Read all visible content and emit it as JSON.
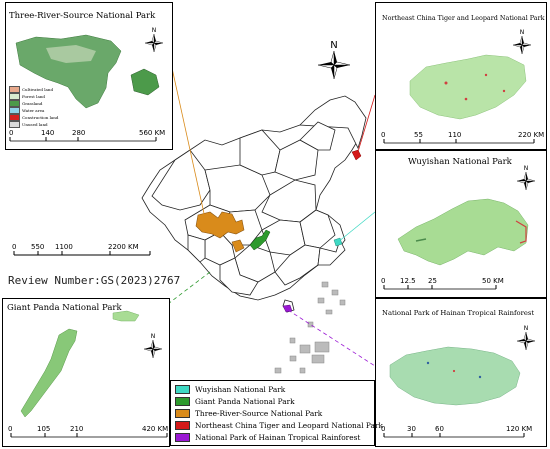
{
  "main_map": {
    "review_number": "Review Number:GS(2023)2767",
    "scale_labels": [
      "0",
      "550",
      "1100",
      "2200 KM"
    ],
    "north_label": "N"
  },
  "three_river": {
    "title": "Three-River-Source National Park",
    "legend": [
      {
        "label": "Cultivated land",
        "color": "#e8a98c"
      },
      {
        "label": "Forest land",
        "color": "#d8ecd0"
      },
      {
        "label": "Grassland",
        "color": "#4c9a4a"
      },
      {
        "label": "Water area",
        "color": "#8fd3ea"
      },
      {
        "label": "Construction land",
        "color": "#d42020"
      },
      {
        "label": "Unused land",
        "color": "#d9d9d9"
      }
    ],
    "scale_labels": [
      "0",
      "140",
      "280",
      "560 KM"
    ],
    "north_label": "N"
  },
  "northeast": {
    "title": "Northeast China Tiger and Leopard National Park",
    "scale_labels": [
      "0",
      "55",
      "110",
      "220 KM"
    ],
    "north_label": "N"
  },
  "wuyishan": {
    "title": "Wuyishan National Park",
    "scale_labels": [
      "0",
      "12.5",
      "25",
      "50 KM"
    ],
    "north_label": "N"
  },
  "hainan": {
    "title": "National Park of Hainan Tropical Rainforest",
    "scale_labels": [
      "0",
      "30",
      "60",
      "120 KM"
    ],
    "north_label": "N"
  },
  "giant_panda": {
    "title": "Giant Panda National Park",
    "scale_labels": [
      "0",
      "105",
      "210",
      "420 KM"
    ],
    "north_label": "N"
  },
  "park_legend": [
    {
      "label": "Wuyishan National Park",
      "color": "#3fd9c4"
    },
    {
      "label": "Giant Panda National Park",
      "color": "#2e9a2e"
    },
    {
      "label": "Three-River-Source National Park",
      "color": "#d98b1b"
    },
    {
      "label": "Northeast China Tiger and Leopard National Park",
      "color": "#d41919"
    },
    {
      "label": "National Park of Hainan Tropical Rainforest",
      "color": "#9b19d4"
    }
  ]
}
